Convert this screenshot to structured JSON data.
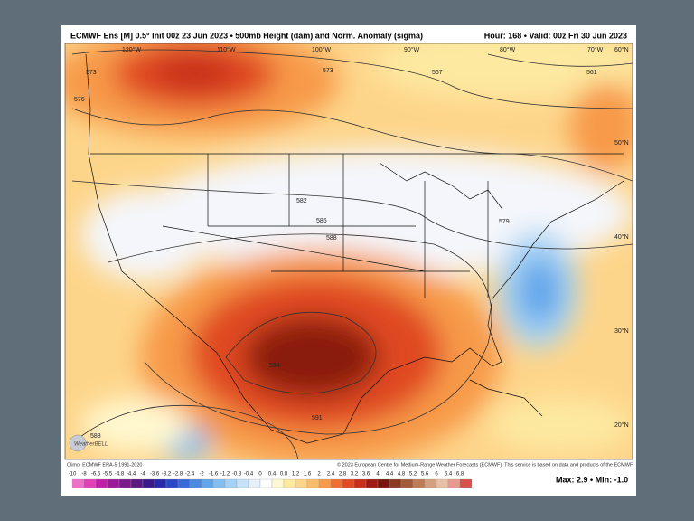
{
  "header": {
    "left": "ECMWF Ens [M] 0.5° Init 00z 23 Jun 2023 • 500mb Height (dam) and Norm. Anomaly (sigma)",
    "right": "Hour: 168 • Valid: 00z Fri 30 Jun 2023"
  },
  "map": {
    "lon_labels": [
      "120°W",
      "110°W",
      "100°W",
      "90°W",
      "80°W",
      "70°W",
      "60°N"
    ],
    "lat_labels": [
      "50°N",
      "40°N",
      "30°N",
      "20°N"
    ],
    "contour_labels": [
      "573",
      "576",
      "573",
      "567",
      "561",
      "582",
      "585",
      "588",
      "579",
      "594",
      "591",
      "588"
    ]
  },
  "logo": "WeatherBELL",
  "footer": {
    "climo": "Climo: ECMWF ERA-5 1991-2020",
    "copyright": "© 2023 European Centre for Medium-Range Weather Forecasts (ECMWF). This service is based on data and products of the ECMWF",
    "maxmin": "Max: 2.9 • Min: -1.0"
  },
  "colorbar": {
    "labels": [
      "-10",
      "-8",
      "-6.5",
      "-5.5",
      "-4.8",
      "-4.4",
      "-4",
      "-3.6",
      "-3.2",
      "-2.8",
      "-2.4",
      "-2",
      "-1.6",
      "-1.2",
      "-0.8",
      "-0.4",
      "0",
      "0.4",
      "0.8",
      "1.2",
      "1.6",
      "2",
      "2.4",
      "2.8",
      "3.2",
      "3.6",
      "4",
      "4.4",
      "4.8",
      "5.2",
      "5.6",
      "6",
      "6.4",
      "6.8"
    ],
    "colors": [
      "#f06ec8",
      "#e040b8",
      "#c020a8",
      "#9a1a9a",
      "#7a1a8c",
      "#5a1a80",
      "#3a1a8a",
      "#2a2aa8",
      "#2a48c8",
      "#3a6ad8",
      "#4a8ae0",
      "#62a6ea",
      "#82bef0",
      "#a4d2f4",
      "#c6e2f8",
      "#e6f0fa",
      "#ffffff",
      "#fff8d0",
      "#fde9a0",
      "#fdd58a",
      "#fbbd6a",
      "#f79a4a",
      "#ef7034",
      "#e04a24",
      "#c8301a",
      "#a01c12",
      "#7a140e",
      "#8a3a22",
      "#a45a38",
      "#be7c56",
      "#d4a080",
      "#e8c0a8",
      "#e89a90",
      "#d8504a"
    ]
  }
}
